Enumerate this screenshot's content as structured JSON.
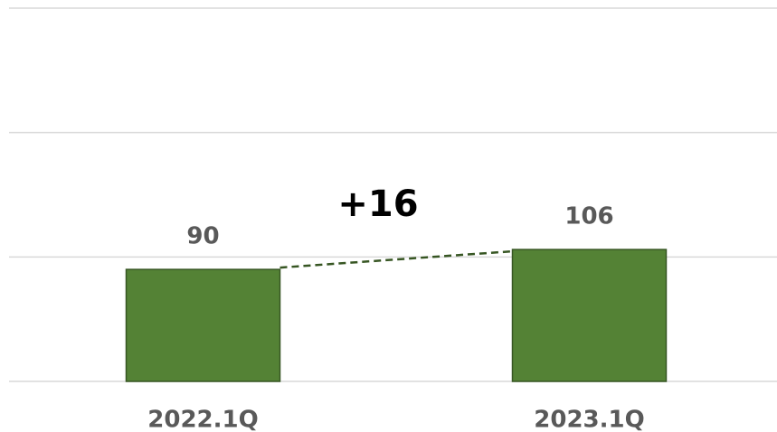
{
  "chart_data": {
    "type": "bar",
    "categories": [
      "2022.1Q",
      "2023.1Q"
    ],
    "values": [
      90,
      106
    ],
    "color": "#548235",
    "annotation": "+16",
    "ylim": [
      0,
      300
    ],
    "yticks": [
      0,
      100,
      200,
      300
    ],
    "grid": true
  }
}
